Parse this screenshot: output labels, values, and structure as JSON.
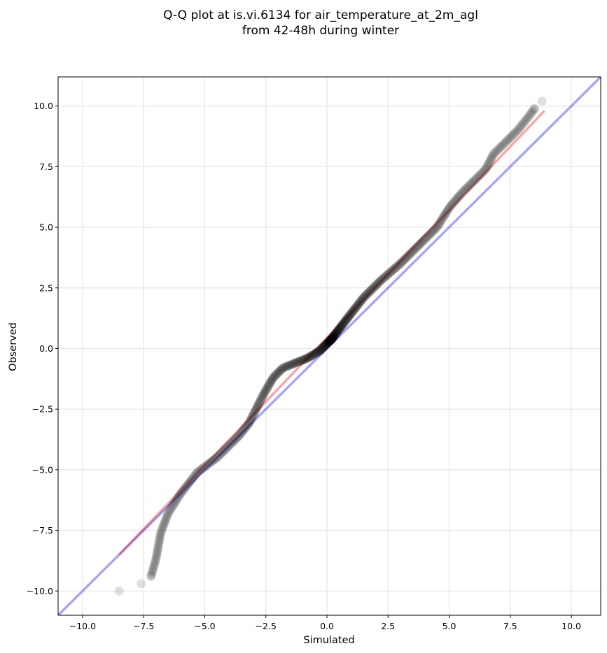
{
  "chart_data": {
    "type": "scatter",
    "title_lines": [
      "Q-Q plot at is.vi.6134 for air_temperature_at_2m_agl",
      "from 42-48h during winter"
    ],
    "xlabel": "Simulated",
    "ylabel": "Observed",
    "xlim": [
      -11.0,
      11.2
    ],
    "ylim": [
      -11.0,
      11.2
    ],
    "grid": true,
    "x_ticks": [
      -10.0,
      -7.5,
      -5.0,
      -2.5,
      0.0,
      2.5,
      5.0,
      7.5,
      10.0
    ],
    "y_ticks": [
      -10.0,
      -7.5,
      -5.0,
      -2.5,
      0.0,
      2.5,
      5.0,
      7.5,
      10.0
    ],
    "x_tick_labels": [
      "−10.0",
      "−7.5",
      "−5.0",
      "−2.5",
      "0.0",
      "2.5",
      "5.0",
      "7.5",
      "10.0"
    ],
    "y_tick_labels": [
      "−10.0",
      "−7.5",
      "−5.0",
      "−2.5",
      "0.0",
      "2.5",
      "5.0",
      "7.5",
      "10.0"
    ],
    "reference_lines": [
      {
        "type": "identity",
        "color": "#0000ee",
        "from": [
          -11.0,
          -11.0
        ],
        "to": [
          11.2,
          11.2
        ]
      },
      {
        "type": "fit",
        "color": "#ee0000",
        "from": [
          -8.5,
          -8.5
        ],
        "to": [
          8.9,
          9.8
        ]
      }
    ],
    "quantile_knots": {
      "x": [
        -8.5,
        -7.6,
        -7.2,
        -7.0,
        -6.8,
        -6.5,
        -6.0,
        -5.3,
        -4.5,
        -4.0,
        -3.6,
        -3.2,
        -2.9,
        -2.6,
        -2.2,
        -1.8,
        -1.3,
        -0.8,
        -0.3,
        0.2,
        0.8,
        1.5,
        2.2,
        3.0,
        3.8,
        4.5,
        5.0,
        5.5,
        6.0,
        6.5,
        6.8,
        7.3,
        7.8,
        8.2,
        8.5,
        8.8
      ],
      "y": [
        -10.0,
        -9.7,
        -9.4,
        -8.7,
        -7.6,
        -6.8,
        -6.0,
        -5.1,
        -4.5,
        -4.0,
        -3.6,
        -3.1,
        -2.5,
        -1.9,
        -1.2,
        -0.8,
        -0.6,
        -0.4,
        -0.1,
        0.4,
        1.2,
        2.1,
        2.8,
        3.5,
        4.3,
        5.0,
        5.8,
        6.4,
        6.9,
        7.4,
        8.0,
        8.5,
        9.0,
        9.5,
        9.9,
        10.2
      ]
    },
    "num_points": 720,
    "marker_color": "#000000"
  }
}
